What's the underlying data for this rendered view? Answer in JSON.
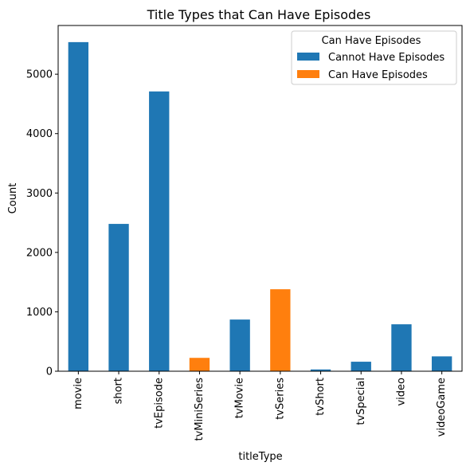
{
  "chart_data": {
    "type": "bar",
    "title": "Title Types that Can Have Episodes",
    "xlabel": "titleType",
    "ylabel": "Count",
    "ylim": [
      0,
      5820
    ],
    "yticks": [
      0,
      1000,
      2000,
      3000,
      4000,
      5000
    ],
    "grid": false,
    "legend_placement": "top-right",
    "categories": [
      "movie",
      "short",
      "tvEpisode",
      "tvMiniSeries",
      "tvMovie",
      "tvSeries",
      "tvShort",
      "tvSpecial",
      "video",
      "videoGame"
    ],
    "series": [
      {
        "name": "Cannot Have Episodes",
        "color": "#1f77b4",
        "values": [
          5540,
          2480,
          4710,
          0,
          870,
          0,
          30,
          160,
          790,
          250
        ]
      },
      {
        "name": "Can Have Episodes",
        "color": "#ff7f0e",
        "values": [
          0,
          0,
          0,
          225,
          0,
          1380,
          0,
          0,
          0,
          0
        ]
      }
    ],
    "legend": {
      "title": "Can Have Episodes",
      "entries": [
        "Cannot Have Episodes",
        "Can Have Episodes"
      ]
    }
  }
}
